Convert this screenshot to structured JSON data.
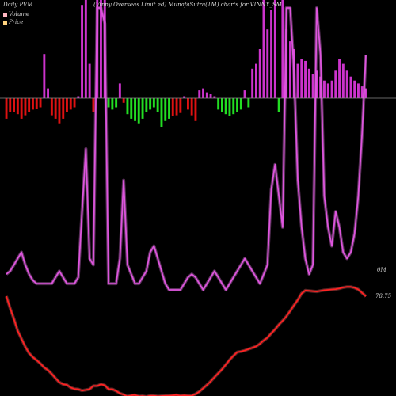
{
  "header": {
    "left": "Daily PVM",
    "center": "(Vinny Overseas Limit ed) MunafaSutra(TM) charts for VINNY_SM",
    "right": "(Vinny Overseas Limit ed) MunafaSutra(TM) charts for VINNY_SM"
  },
  "legend": [
    {
      "label": "Volume",
      "color": "#ffb6c1"
    },
    {
      "label": "Price",
      "color": "#ffd27f"
    }
  ],
  "end_labels": {
    "volume": "0M",
    "price": "78.75"
  },
  "colors": {
    "volume_line": "#dd55dd",
    "price_line": "#ff2222",
    "bar_magenta": "#cc33cc",
    "bar_red": "#dd1111",
    "bar_green": "#22dd22",
    "zero_line": "#888888"
  },
  "chart_data": {
    "type": "line",
    "x": [
      1,
      2,
      3,
      4,
      5,
      6,
      7,
      8,
      9,
      10,
      11,
      12,
      13,
      14,
      15,
      16,
      17,
      18,
      19,
      20,
      21,
      22,
      23,
      24,
      25,
      26,
      27,
      28,
      29,
      30,
      31,
      32,
      33,
      34,
      35,
      36,
      37,
      38,
      39,
      40,
      41,
      42,
      43,
      44,
      45,
      46,
      47,
      48,
      49,
      50,
      51,
      52,
      53,
      54,
      55,
      56,
      57,
      58,
      59,
      60,
      61,
      62,
      63,
      64,
      65,
      66,
      67,
      68,
      69,
      70,
      71,
      72,
      73,
      74,
      75,
      76,
      77,
      78,
      79,
      80,
      81,
      82,
      83,
      84,
      85,
      86,
      87,
      88,
      89,
      90,
      91,
      92,
      93,
      94,
      95,
      96
    ],
    "series": [
      {
        "name": "Volume",
        "values": [
          15,
          16,
          18,
          20,
          22,
          18,
          15,
          13,
          12,
          12,
          12,
          12,
          12,
          14,
          16,
          14,
          12,
          12,
          12,
          14,
          35,
          55,
          20,
          18,
          100,
          100,
          95,
          12,
          12,
          12,
          20,
          45,
          18,
          15,
          12,
          12,
          14,
          16,
          22,
          24,
          20,
          16,
          12,
          10,
          10,
          10,
          10,
          12,
          14,
          15,
          14,
          12,
          10,
          12,
          14,
          16,
          14,
          12,
          10,
          12,
          14,
          16,
          18,
          20,
          18,
          16,
          14,
          12,
          15,
          18,
          42,
          50,
          40,
          30,
          100,
          100,
          80,
          45,
          30,
          20,
          15,
          18,
          100,
          85,
          40,
          30,
          24,
          35,
          30,
          22,
          20,
          22,
          28,
          40,
          60,
          85
        ]
      },
      {
        "name": "Price",
        "values": [
          78.8,
          75.2,
          72,
          68.5,
          66.1,
          63.7,
          61.8,
          60.6,
          59.7,
          58.7,
          57.5,
          56.7,
          55.6,
          54.3,
          53.1,
          52.5,
          52.3,
          51.5,
          51.1,
          51,
          50.6,
          50.8,
          51,
          52,
          52,
          52.5,
          52.2,
          51,
          51,
          50.5,
          49.8,
          49.4,
          48.9,
          49.2,
          49.3,
          48.9,
          49,
          48.8,
          49.1,
          49.1,
          48.9,
          49,
          49.1,
          49.1,
          49.2,
          49.3,
          49.1,
          49.2,
          49.1,
          49.1,
          49.6,
          50.3,
          51.3,
          52.3,
          53.4,
          54.6,
          55.8,
          57,
          58.4,
          59.8,
          61,
          62.1,
          62.3,
          62.6,
          63,
          63.4,
          63.8,
          64.6,
          65.6,
          66.4,
          67.7,
          68.9,
          70.3,
          71.5,
          72.8,
          74.4,
          76.1,
          77.7,
          79.6,
          80.5,
          80.4,
          80.3,
          80.2,
          80.4,
          80.6,
          80.7,
          80.8,
          80.9,
          81.1,
          81.4,
          81.6,
          81.6,
          81.3,
          80.8,
          79.8,
          78.75
        ]
      }
    ],
    "bars": {
      "up": [
        0,
        0,
        0,
        0,
        0,
        0,
        0,
        0,
        0,
        0,
        45,
        10,
        0,
        0,
        0,
        0,
        0,
        0,
        0,
        2,
        95,
        100,
        35,
        0,
        100,
        100,
        100,
        0,
        0,
        0,
        15,
        0,
        0,
        0,
        0,
        0,
        0,
        0,
        0,
        0,
        0,
        0,
        0,
        0,
        0,
        0,
        0,
        2,
        0,
        0,
        0,
        8,
        10,
        6,
        4,
        2,
        0,
        0,
        0,
        0,
        0,
        0,
        0,
        8,
        0,
        30,
        35,
        50,
        100,
        70,
        90,
        100,
        0,
        100,
        70,
        58,
        50,
        35,
        40,
        38,
        30,
        25,
        28,
        22,
        18,
        15,
        18,
        28,
        40,
        35,
        28,
        22,
        18,
        15,
        12,
        10
      ],
      "down": [
        18,
        12,
        12,
        14,
        18,
        15,
        12,
        10,
        9,
        8,
        0,
        0,
        15,
        18,
        22,
        18,
        12,
        10,
        8,
        0,
        0,
        0,
        0,
        12,
        0,
        0,
        0,
        8,
        10,
        8,
        0,
        4,
        14,
        18,
        20,
        22,
        18,
        12,
        10,
        8,
        12,
        25,
        20,
        18,
        16,
        15,
        13,
        0,
        10,
        15,
        20,
        0,
        0,
        0,
        0,
        0,
        10,
        12,
        14,
        16,
        14,
        12,
        10,
        0,
        8,
        0,
        0,
        0,
        0,
        0,
        0,
        0,
        12,
        0,
        0,
        0,
        0,
        0,
        0,
        0,
        0,
        0,
        0,
        0,
        0,
        0,
        0,
        0,
        0,
        0,
        0,
        0,
        0,
        0,
        0,
        0
      ],
      "down_color_index": [
        1,
        1,
        1,
        1,
        1,
        1,
        1,
        1,
        1,
        1,
        0,
        0,
        1,
        1,
        1,
        1,
        1,
        1,
        1,
        0,
        0,
        0,
        0,
        1,
        0,
        0,
        0,
        2,
        2,
        2,
        0,
        1,
        2,
        2,
        2,
        2,
        2,
        2,
        2,
        2,
        2,
        2,
        2,
        2,
        1,
        1,
        1,
        0,
        1,
        1,
        1,
        0,
        0,
        0,
        0,
        0,
        2,
        2,
        2,
        2,
        2,
        2,
        2,
        0,
        2,
        0,
        0,
        0,
        0,
        0,
        0,
        0,
        2,
        0,
        0,
        0,
        0,
        0,
        0,
        0,
        0,
        0,
        0,
        0,
        0,
        0,
        0,
        0,
        0,
        0,
        0,
        0,
        0,
        0,
        0,
        0
      ]
    }
  }
}
